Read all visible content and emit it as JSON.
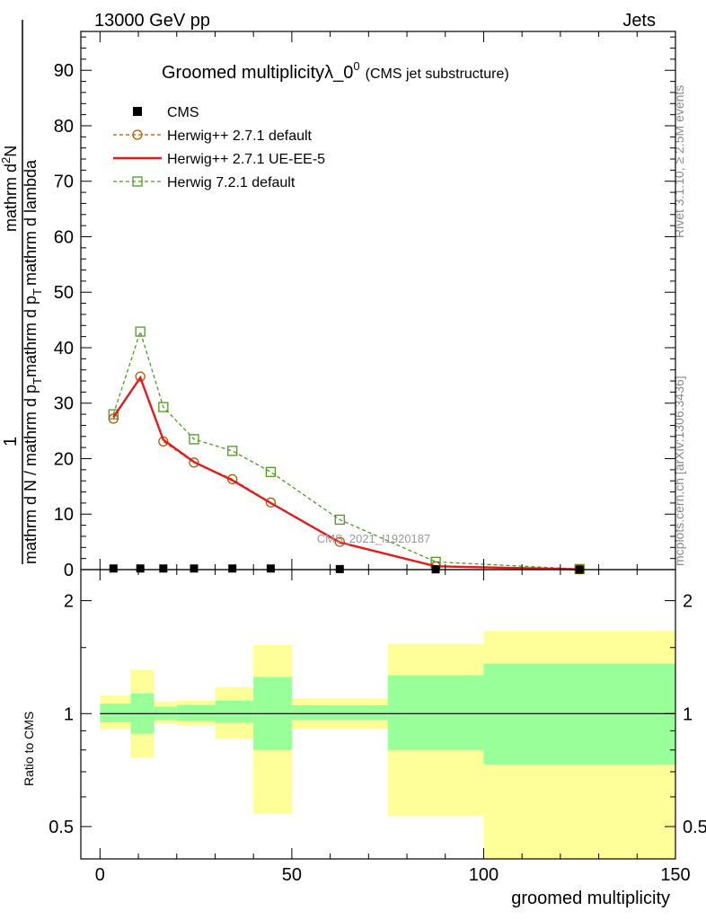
{
  "header": {
    "left": "13000 GeV pp",
    "right": "Jets",
    "title": "Groomed multiplicityλ_0",
    "title_sup": "0",
    "title_note": "(CMS jet substructure)",
    "side_top": "Rivet 3.1.10, ≥ 2.5M events",
    "side_bottom": "mcplots.cern.ch [arXiv:1306.3436]",
    "watermark": "CMS_2021_I1920187"
  },
  "colors": {
    "data": "#000000",
    "herwig_default": "#b35900",
    "herwig_ueee5": "#e41a1c",
    "herwig7": "#4d9a1e",
    "band_inner": "#99ff99",
    "band_outer": "#ffff99"
  },
  "chart_data": [
    {
      "type": "line",
      "ylabel_parts": [
        "1",
        "mathrm d N / mathrm d p",
        "T",
        "mathrm d p",
        "T",
        "mathrm d lambda",
        "mathrm d",
        "2",
        "N"
      ],
      "xlim": [
        -5,
        150
      ],
      "ylim": [
        0,
        97
      ],
      "yticks": [
        0,
        10,
        20,
        30,
        40,
        50,
        60,
        70,
        80,
        90
      ],
      "legend_position": "top-left",
      "legend": [
        "CMS",
        "Herwig++ 2.7.1 default",
        "Herwig++ 2.7.1 UE-EE-5",
        "Herwig 7.2.1 default"
      ],
      "series": [
        {
          "name": "CMS",
          "marker": "square",
          "x": [
            3.5,
            10.5,
            16.5,
            24.5,
            34.5,
            44.5,
            62.5,
            87.5,
            125
          ],
          "y": [
            0.2,
            0.2,
            0.2,
            0.2,
            0.2,
            0.2,
            0.1,
            0.05,
            0.01
          ]
        },
        {
          "name": "Herwig++ 2.7.1 default",
          "marker": "circle",
          "style": "dashed",
          "x": [
            3.5,
            10.5,
            16.5,
            24.5,
            34.5,
            44.5,
            62.5,
            87.5,
            125
          ],
          "y": [
            27.2,
            34.8,
            23.1,
            19.3,
            16.3,
            12.1,
            5.0,
            0.6,
            0.05
          ]
        },
        {
          "name": "Herwig++ 2.7.1 UE-EE-5",
          "marker": "none",
          "style": "solid",
          "x": [
            3.5,
            10.5,
            16.5,
            24.5,
            34.5,
            44.5,
            62.5,
            87.5,
            125
          ],
          "y": [
            27.5,
            34.6,
            23.4,
            19.4,
            16.1,
            12.0,
            4.9,
            0.6,
            0.05
          ]
        },
        {
          "name": "Herwig 7.2.1 default",
          "marker": "open-square",
          "style": "dashed",
          "x": [
            3.5,
            10.5,
            16.5,
            24.5,
            34.5,
            44.5,
            62.5,
            87.5,
            125
          ],
          "y": [
            28.0,
            42.9,
            29.3,
            23.5,
            21.4,
            17.6,
            9.0,
            1.4,
            0.1
          ]
        }
      ]
    },
    {
      "type": "area",
      "ylabel": "Ratio to CMS",
      "xlabel": "groomed multiplicity",
      "xlim": [
        -5,
        150
      ],
      "ylim": [
        0.41,
        2.42
      ],
      "log_y": true,
      "yticks": [
        0.5,
        1,
        2
      ],
      "xticks": [
        0,
        50,
        100,
        150
      ],
      "reference_line": 1,
      "bins": [
        {
          "lo": 0,
          "hi": 8,
          "inner": [
            0.948,
            1.063
          ],
          "outer": [
            0.908,
            1.118
          ]
        },
        {
          "lo": 8,
          "hi": 14,
          "inner": [
            0.884,
            1.133
          ],
          "outer": [
            0.763,
            1.31
          ]
        },
        {
          "lo": 14,
          "hi": 20,
          "inner": [
            0.962,
            1.043
          ],
          "outer": [
            0.942,
            1.078
          ]
        },
        {
          "lo": 20,
          "hi": 30,
          "inner": [
            0.955,
            1.055
          ],
          "outer": [
            0.928,
            1.083
          ]
        },
        {
          "lo": 30,
          "hi": 40,
          "inner": [
            0.945,
            1.083
          ],
          "outer": [
            0.856,
            1.177
          ]
        },
        {
          "lo": 40,
          "hi": 50,
          "inner": [
            0.8,
            1.252
          ],
          "outer": [
            0.54,
            1.523
          ]
        },
        {
          "lo": 50,
          "hi": 75,
          "inner": [
            0.962,
            1.053
          ],
          "outer": [
            0.912,
            1.097
          ]
        },
        {
          "lo": 75,
          "hi": 100,
          "inner": [
            0.8,
            1.265
          ],
          "outer": [
            0.533,
            1.535
          ]
        },
        {
          "lo": 100,
          "hi": 150,
          "inner": [
            0.732,
            1.36
          ],
          "outer": [
            0.41,
            1.66
          ]
        }
      ]
    }
  ]
}
